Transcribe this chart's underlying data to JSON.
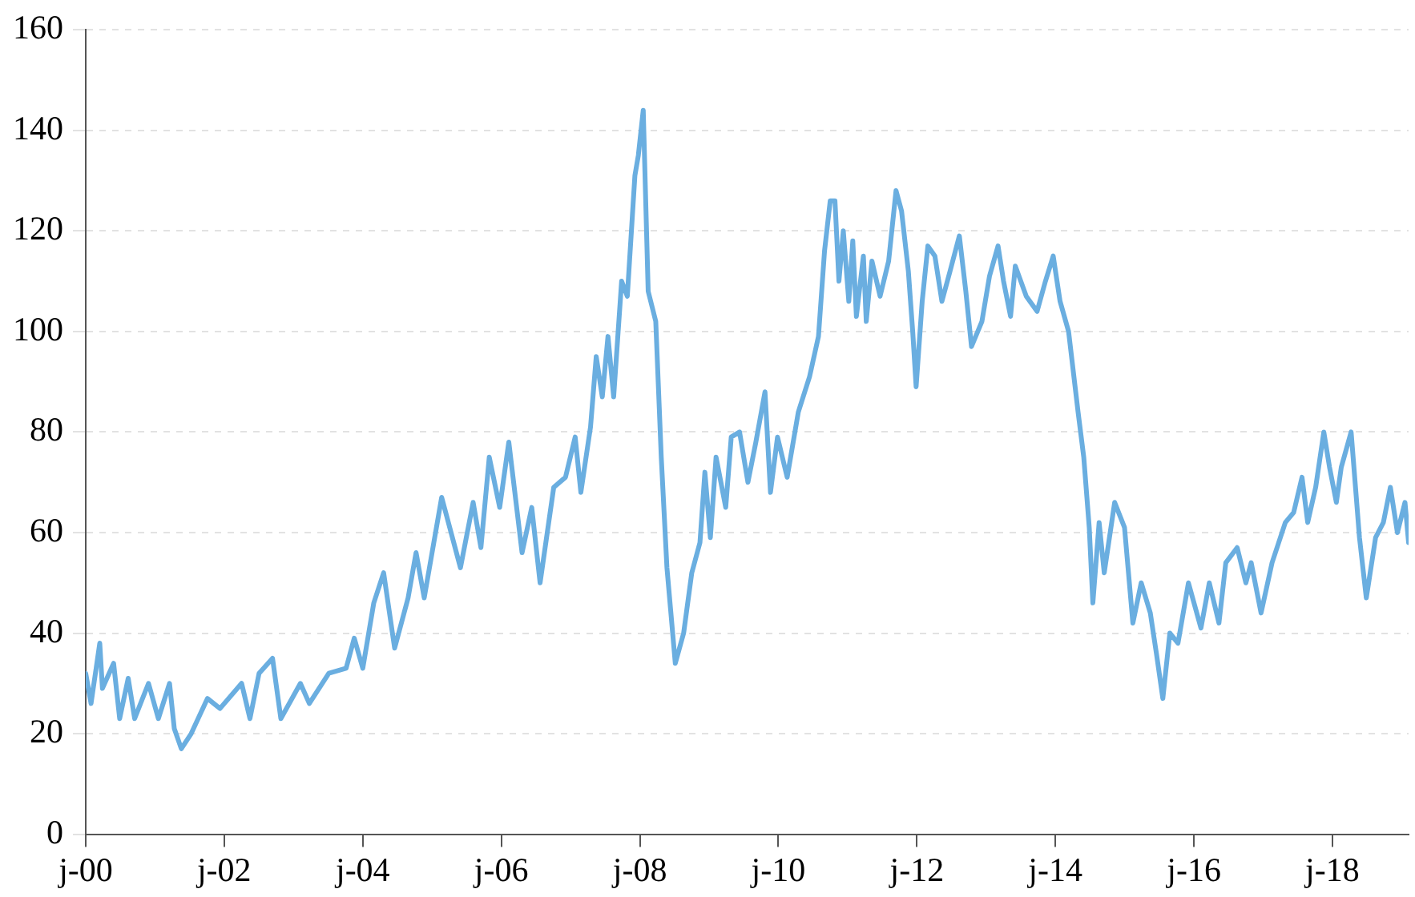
{
  "chart_data": {
    "type": "line",
    "x": [
      "2000-07-01",
      "2000-07-29",
      "2000-09-13",
      "2000-09-27",
      "2000-11-25",
      "2000-12-27",
      "2001-02-10",
      "2001-03-16",
      "2001-05-28",
      "2001-07-19",
      "2001-09-16",
      "2001-10-11",
      "2001-11-17",
      "2002-01-08",
      "2002-04-04",
      "2002-06-09",
      "2002-10-01",
      "2002-11-14",
      "2003-01-01",
      "2003-03-13",
      "2003-04-26",
      "2003-08-07",
      "2003-09-23",
      "2004-01-04",
      "2004-04-04",
      "2004-05-17",
      "2004-07-01",
      "2004-08-28",
      "2004-10-19",
      "2004-12-16",
      "2005-02-25",
      "2005-04-08",
      "2005-05-21",
      "2005-08-21",
      "2005-11-28",
      "2006-02-03",
      "2006-03-16",
      "2006-04-29",
      "2006-06-23",
      "2006-08-10",
      "2006-10-19",
      "2006-12-09",
      "2007-01-22",
      "2007-04-04",
      "2007-06-05",
      "2007-07-26",
      "2007-08-25",
      "2007-10-15",
      "2007-11-14",
      "2007-12-16",
      "2008-01-15",
      "2008-02-14",
      "2008-03-27",
      "2008-04-26",
      "2008-06-05",
      "2008-06-23",
      "2008-07-19",
      "2008-08-14",
      "2008-09-23",
      "2008-10-22",
      "2008-11-21",
      "2009-01-04",
      "2009-02-17",
      "2009-04-01",
      "2009-05-14",
      "2009-06-09",
      "2009-07-08",
      "2009-08-07",
      "2009-09-27",
      "2009-10-26",
      "2009-12-09",
      "2010-01-22",
      "2010-03-05",
      "2010-04-22",
      "2010-05-21",
      "2010-06-27",
      "2010-08-17",
      "2010-10-15",
      "2010-12-13",
      "2011-01-29",
      "2011-03-02",
      "2011-04-01",
      "2011-04-26",
      "2011-05-17",
      "2011-06-09",
      "2011-07-08",
      "2011-07-29",
      "2011-08-17",
      "2011-09-23",
      "2011-10-08",
      "2011-11-07",
      "2011-12-20",
      "2012-02-03",
      "2012-03-13",
      "2012-04-11",
      "2012-05-17",
      "2012-06-09",
      "2012-06-27",
      "2012-07-29",
      "2012-08-28",
      "2012-10-04",
      "2012-11-10",
      "2012-12-23",
      "2013-02-10",
      "2013-03-16",
      "2013-04-15",
      "2013-06-09",
      "2013-07-19",
      "2013-09-02",
      "2013-10-01",
      "2013-11-07",
      "2013-12-02",
      "2014-01-29",
      "2014-03-27",
      "2014-05-10",
      "2014-06-20",
      "2014-07-26",
      "2014-09-09",
      "2014-10-29",
      "2014-11-28",
      "2014-12-27",
      "2015-01-15",
      "2015-02-17",
      "2015-03-16",
      "2015-05-10",
      "2015-07-01",
      "2015-08-14",
      "2015-09-27",
      "2015-11-14",
      "2015-12-16",
      "2016-01-19",
      "2016-02-25",
      "2016-04-08",
      "2016-06-02",
      "2016-08-07",
      "2016-09-20",
      "2016-11-10",
      "2016-12-16",
      "2017-02-14",
      "2017-04-01",
      "2017-04-29",
      "2017-06-20",
      "2017-08-17",
      "2017-10-26",
      "2017-12-09",
      "2018-01-22",
      "2018-02-21",
      "2018-04-04",
      "2018-05-17",
      "2018-06-16",
      "2018-07-22",
      "2018-08-17",
      "2018-10-08",
      "2018-11-21",
      "2018-12-27",
      "2019-02-14",
      "2019-03-27",
      "2019-05-03",
      "2019-06-09",
      "2019-07-19",
      "2019-08-07"
    ],
    "series": [
      {
        "color": "#6aaee0",
        "values": [
          32,
          26,
          38,
          29,
          34,
          23,
          31,
          23,
          30,
          23,
          30,
          21,
          17,
          20,
          27,
          25,
          30,
          23,
          32,
          35,
          23,
          30,
          26,
          32,
          33,
          39,
          33,
          46,
          52,
          37,
          47,
          56,
          47,
          67,
          53,
          66,
          57,
          75,
          65,
          78,
          56,
          65,
          50,
          69,
          71,
          79,
          68,
          81,
          95,
          87,
          99,
          87,
          110,
          107,
          131,
          135,
          144,
          108,
          102,
          75,
          53,
          34,
          40,
          52,
          58,
          72,
          59,
          75,
          65,
          79,
          80,
          70,
          78,
          88,
          68,
          79,
          71,
          84,
          91,
          99,
          116,
          126,
          126,
          110,
          120,
          106,
          118,
          103,
          115,
          102,
          114,
          107,
          114,
          128,
          124,
          112,
          100,
          89,
          106,
          117,
          115,
          106,
          112,
          119,
          108,
          97,
          102,
          111,
          117,
          110,
          103,
          113,
          107,
          104,
          110,
          115,
          106,
          100,
          84,
          75,
          61,
          46,
          62,
          52,
          66,
          61,
          42,
          50,
          44,
          36,
          27,
          40,
          38,
          50,
          41,
          50,
          42,
          54,
          57,
          50,
          54,
          44,
          54,
          62,
          64,
          71,
          62,
          69,
          80,
          73,
          66,
          73,
          80,
          59,
          47,
          59,
          62,
          69,
          60,
          66,
          58
        ]
      }
    ],
    "xlim": [
      "2000-07-01",
      "2019-08-07"
    ],
    "xticks": [
      {
        "value": "2000-07-01",
        "label": "j-00"
      },
      {
        "value": "2002-07-01",
        "label": "j-02"
      },
      {
        "value": "2004-07-01",
        "label": "j-04"
      },
      {
        "value": "2006-07-01",
        "label": "j-06"
      },
      {
        "value": "2008-07-01",
        "label": "j-08"
      },
      {
        "value": "2010-07-01",
        "label": "j-10"
      },
      {
        "value": "2012-07-01",
        "label": "j-12"
      },
      {
        "value": "2014-07-01",
        "label": "j-14"
      },
      {
        "value": "2016-07-01",
        "label": "j-16"
      },
      {
        "value": "2018-07-01",
        "label": "j-18"
      }
    ],
    "ylim": [
      0,
      160
    ],
    "yticks": [
      0,
      20,
      40,
      60,
      80,
      100,
      120,
      140,
      160
    ],
    "grid": "y",
    "legend": false,
    "marker": "none",
    "line_style": "solid"
  }
}
